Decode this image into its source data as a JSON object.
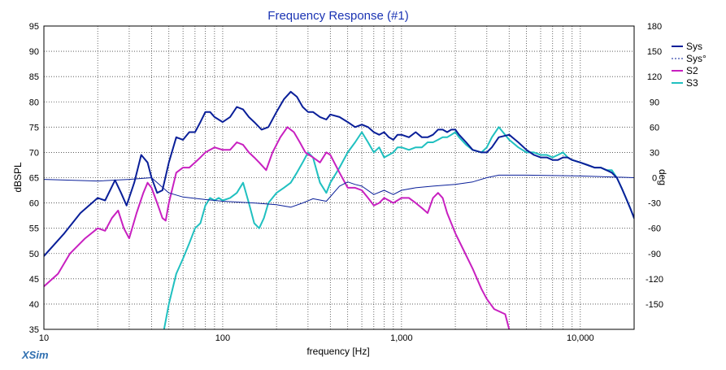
{
  "app": {
    "brand": "XSim"
  },
  "chart_data": {
    "type": "line",
    "title": "Frequency Response (#1)",
    "xlabel": "frequency [Hz]",
    "ylabel": "dBSPL",
    "y2label": "deg",
    "xscale": "log",
    "xlim": [
      10,
      20000
    ],
    "ylim": [
      35,
      95
    ],
    "y2lim": [
      -180,
      180
    ],
    "grid": true,
    "legend_position": "top-right",
    "x_ticks": [
      {
        "value": 10,
        "label": "10"
      },
      {
        "value": 100,
        "label": "100"
      },
      {
        "value": 1000,
        "label": "1,000"
      },
      {
        "value": 10000,
        "label": "10,000"
      }
    ],
    "y_ticks": [
      95,
      90,
      85,
      80,
      75,
      70,
      65,
      60,
      55,
      50,
      45,
      40,
      35
    ],
    "y2_ticks": [
      180,
      150,
      120,
      90,
      60,
      30,
      0,
      -30,
      -60,
      -90,
      -120,
      -150
    ],
    "series": [
      {
        "name": "Sys",
        "axis": "left",
        "color": "#0a1f99",
        "style": "solid",
        "points": [
          [
            10,
            49.5
          ],
          [
            13,
            54
          ],
          [
            16,
            58
          ],
          [
            20,
            61
          ],
          [
            22,
            60.5
          ],
          [
            25,
            64.5
          ],
          [
            27,
            62
          ],
          [
            29,
            59.5
          ],
          [
            32,
            64
          ],
          [
            35,
            69.5
          ],
          [
            38,
            68
          ],
          [
            40,
            65
          ],
          [
            43,
            62
          ],
          [
            46,
            62.5
          ],
          [
            50,
            68
          ],
          [
            55,
            73
          ],
          [
            60,
            72.5
          ],
          [
            65,
            74
          ],
          [
            70,
            74
          ],
          [
            75,
            76
          ],
          [
            80,
            78
          ],
          [
            85,
            78
          ],
          [
            90,
            77
          ],
          [
            100,
            76
          ],
          [
            110,
            77
          ],
          [
            120,
            79
          ],
          [
            130,
            78.5
          ],
          [
            140,
            77
          ],
          [
            150,
            76
          ],
          [
            165,
            74.5
          ],
          [
            180,
            75
          ],
          [
            200,
            78
          ],
          [
            220,
            80.5
          ],
          [
            240,
            82
          ],
          [
            260,
            81
          ],
          [
            280,
            79
          ],
          [
            300,
            78
          ],
          [
            320,
            78
          ],
          [
            350,
            77
          ],
          [
            380,
            76.5
          ],
          [
            400,
            77.5
          ],
          [
            450,
            77
          ],
          [
            500,
            76
          ],
          [
            550,
            75
          ],
          [
            600,
            75.5
          ],
          [
            650,
            75
          ],
          [
            700,
            74
          ],
          [
            750,
            73.5
          ],
          [
            800,
            74
          ],
          [
            850,
            73
          ],
          [
            900,
            72.5
          ],
          [
            950,
            73.5
          ],
          [
            1000,
            73.5
          ],
          [
            1100,
            73
          ],
          [
            1200,
            74
          ],
          [
            1300,
            73
          ],
          [
            1400,
            73
          ],
          [
            1500,
            73.5
          ],
          [
            1600,
            74.5
          ],
          [
            1700,
            74.5
          ],
          [
            1800,
            74
          ],
          [
            1900,
            74.5
          ],
          [
            2000,
            74.5
          ],
          [
            2100,
            73.5
          ],
          [
            2300,
            72
          ],
          [
            2500,
            70.5
          ],
          [
            2800,
            70
          ],
          [
            3000,
            70
          ],
          [
            3200,
            71
          ],
          [
            3500,
            73
          ],
          [
            4000,
            73.5
          ],
          [
            4500,
            72
          ],
          [
            5000,
            70.5
          ],
          [
            5500,
            69.5
          ],
          [
            6000,
            69
          ],
          [
            6500,
            69
          ],
          [
            7000,
            68.5
          ],
          [
            7500,
            68.5
          ],
          [
            8000,
            69
          ],
          [
            8500,
            69
          ],
          [
            9000,
            68.5
          ],
          [
            10000,
            68
          ],
          [
            11000,
            67.5
          ],
          [
            12000,
            67
          ],
          [
            13000,
            67
          ],
          [
            14000,
            66.5
          ],
          [
            15000,
            66
          ],
          [
            16000,
            65
          ],
          [
            17000,
            63
          ],
          [
            18000,
            61
          ],
          [
            19000,
            59
          ],
          [
            20000,
            57
          ]
        ]
      },
      {
        "name": "Sys°",
        "axis": "right",
        "color": "#0a1f99",
        "style": "dashed",
        "points": [
          [
            10,
            -2
          ],
          [
            20,
            -4
          ],
          [
            30,
            -2
          ],
          [
            40,
            0
          ],
          [
            50,
            -18
          ],
          [
            60,
            -23
          ],
          [
            80,
            -26
          ],
          [
            100,
            -28
          ],
          [
            150,
            -30
          ],
          [
            200,
            -32
          ],
          [
            240,
            -35
          ],
          [
            280,
            -30
          ],
          [
            320,
            -25
          ],
          [
            380,
            -28
          ],
          [
            450,
            -10
          ],
          [
            500,
            -5
          ],
          [
            550,
            -8
          ],
          [
            600,
            -10
          ],
          [
            700,
            -20
          ],
          [
            800,
            -15
          ],
          [
            900,
            -20
          ],
          [
            1000,
            -15
          ],
          [
            1200,
            -12
          ],
          [
            1500,
            -10
          ],
          [
            2000,
            -8
          ],
          [
            2500,
            -5
          ],
          [
            3000,
            0
          ],
          [
            3500,
            3
          ],
          [
            5000,
            3
          ],
          [
            10000,
            2
          ],
          [
            20000,
            0
          ]
        ]
      },
      {
        "name": "S2",
        "axis": "left",
        "color": "#c820c0",
        "style": "solid",
        "points": [
          [
            10,
            43.5
          ],
          [
            12,
            46
          ],
          [
            14,
            50
          ],
          [
            17,
            53
          ],
          [
            20,
            55
          ],
          [
            22,
            54.5
          ],
          [
            24,
            57
          ],
          [
            26,
            58.5
          ],
          [
            28,
            55
          ],
          [
            30,
            53
          ],
          [
            33,
            58
          ],
          [
            36,
            62
          ],
          [
            38,
            64
          ],
          [
            40,
            63
          ],
          [
            43,
            60
          ],
          [
            46,
            57
          ],
          [
            48,
            56.5
          ],
          [
            50,
            60
          ],
          [
            55,
            66
          ],
          [
            60,
            67
          ],
          [
            65,
            67
          ],
          [
            70,
            68
          ],
          [
            75,
            69
          ],
          [
            80,
            70
          ],
          [
            90,
            71
          ],
          [
            100,
            70.5
          ],
          [
            110,
            70.5
          ],
          [
            120,
            72
          ],
          [
            130,
            71.5
          ],
          [
            140,
            70
          ],
          [
            150,
            69
          ],
          [
            160,
            68
          ],
          [
            175,
            66.5
          ],
          [
            190,
            70
          ],
          [
            210,
            73
          ],
          [
            230,
            75
          ],
          [
            250,
            74
          ],
          [
            270,
            72
          ],
          [
            290,
            70
          ],
          [
            320,
            69
          ],
          [
            350,
            68
          ],
          [
            380,
            70
          ],
          [
            400,
            69.5
          ],
          [
            450,
            66
          ],
          [
            500,
            63
          ],
          [
            550,
            63
          ],
          [
            600,
            62.5
          ],
          [
            650,
            61
          ],
          [
            700,
            59.5
          ],
          [
            750,
            60
          ],
          [
            800,
            61
          ],
          [
            850,
            60.5
          ],
          [
            900,
            60
          ],
          [
            1000,
            61
          ],
          [
            1100,
            61
          ],
          [
            1200,
            60
          ],
          [
            1300,
            59
          ],
          [
            1400,
            58
          ],
          [
            1500,
            61
          ],
          [
            1600,
            62
          ],
          [
            1700,
            61
          ],
          [
            1800,
            58
          ],
          [
            2000,
            54
          ],
          [
            2200,
            51
          ],
          [
            2500,
            47
          ],
          [
            2800,
            43
          ],
          [
            3000,
            41
          ],
          [
            3300,
            39
          ],
          [
            3800,
            38
          ],
          [
            4000,
            35
          ]
        ]
      },
      {
        "name": "S3",
        "axis": "left",
        "color": "#20c0c0",
        "style": "solid",
        "points": [
          [
            47,
            35
          ],
          [
            50,
            40
          ],
          [
            55,
            46
          ],
          [
            60,
            49
          ],
          [
            65,
            52
          ],
          [
            70,
            55
          ],
          [
            75,
            56
          ],
          [
            80,
            59.5
          ],
          [
            85,
            61
          ],
          [
            90,
            60.5
          ],
          [
            95,
            61
          ],
          [
            100,
            60.5
          ],
          [
            110,
            61
          ],
          [
            120,
            62
          ],
          [
            130,
            64
          ],
          [
            140,
            60
          ],
          [
            150,
            56
          ],
          [
            160,
            55
          ],
          [
            170,
            57
          ],
          [
            180,
            60
          ],
          [
            200,
            62
          ],
          [
            220,
            63
          ],
          [
            240,
            64
          ],
          [
            260,
            66
          ],
          [
            280,
            68
          ],
          [
            300,
            70
          ],
          [
            320,
            69
          ],
          [
            350,
            64
          ],
          [
            380,
            62
          ],
          [
            400,
            64
          ],
          [
            450,
            67
          ],
          [
            500,
            70
          ],
          [
            550,
            72
          ],
          [
            600,
            74
          ],
          [
            650,
            72
          ],
          [
            700,
            70
          ],
          [
            750,
            71
          ],
          [
            800,
            69
          ],
          [
            850,
            69.5
          ],
          [
            900,
            70
          ],
          [
            950,
            71
          ],
          [
            1000,
            71
          ],
          [
            1100,
            70.5
          ],
          [
            1200,
            71
          ],
          [
            1300,
            71
          ],
          [
            1400,
            72
          ],
          [
            1500,
            72
          ],
          [
            1600,
            72.5
          ],
          [
            1700,
            73
          ],
          [
            1800,
            73
          ],
          [
            1900,
            73.5
          ],
          [
            2000,
            74
          ],
          [
            2100,
            73
          ],
          [
            2300,
            71.5
          ],
          [
            2500,
            70.5
          ],
          [
            2800,
            70
          ],
          [
            3000,
            71
          ],
          [
            3200,
            73
          ],
          [
            3500,
            75
          ],
          [
            4000,
            72.5
          ],
          [
            4500,
            71
          ],
          [
            5000,
            70
          ],
          [
            5500,
            70
          ],
          [
            6000,
            69.5
          ],
          [
            6500,
            69.5
          ],
          [
            7000,
            69
          ],
          [
            7500,
            69.5
          ],
          [
            8000,
            70
          ],
          [
            8500,
            69
          ],
          [
            9000,
            68.5
          ],
          [
            10000,
            68
          ],
          [
            11000,
            67.5
          ],
          [
            12000,
            67
          ],
          [
            13000,
            67
          ],
          [
            14000,
            66.5
          ],
          [
            15000,
            66.5
          ],
          [
            16000,
            65
          ],
          [
            17000,
            63
          ],
          [
            18000,
            61
          ],
          [
            19000,
            59
          ],
          [
            20000,
            57
          ]
        ]
      }
    ]
  }
}
